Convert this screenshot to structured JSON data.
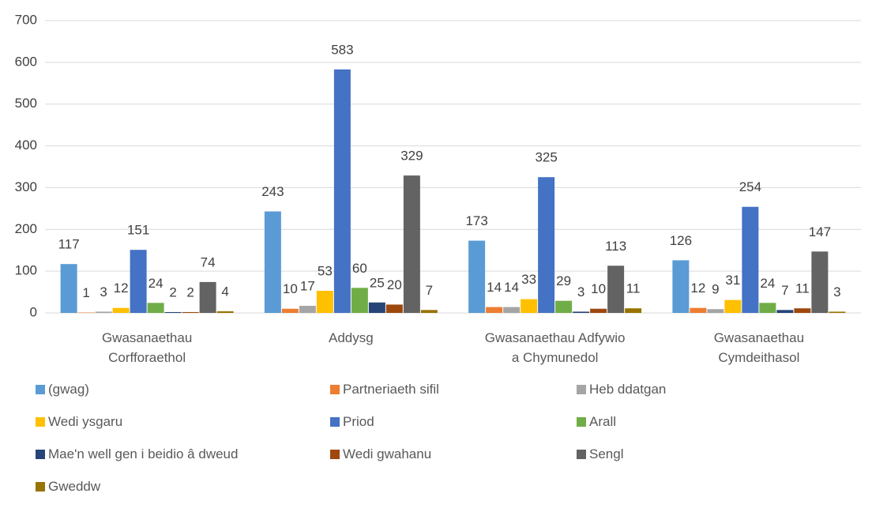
{
  "chart_data": {
    "type": "bar",
    "categories": [
      "Gwasanaethau Corfforaethol",
      "Addysg",
      "Gwasanaethau Adfywio a Chymunedol",
      "Gwasanaethau Cymdeithasol"
    ],
    "series": [
      {
        "name": "(gwag)",
        "color": "#5b9bd5",
        "values": [
          117,
          243,
          173,
          126
        ]
      },
      {
        "name": "Partneriaeth sifil",
        "color": "#ed7d31",
        "values": [
          1,
          10,
          14,
          12
        ]
      },
      {
        "name": "Heb ddatgan",
        "color": "#a5a5a5",
        "values": [
          3,
          17,
          14,
          9
        ]
      },
      {
        "name": "Wedi ysgaru",
        "color": "#ffc000",
        "values": [
          12,
          53,
          33,
          31
        ]
      },
      {
        "name": "Priod",
        "color": "#4472c4",
        "values": [
          151,
          583,
          325,
          254
        ]
      },
      {
        "name": "Arall",
        "color": "#70ad47",
        "values": [
          24,
          60,
          29,
          24
        ]
      },
      {
        "name": "Mae'n well gen i beidio â dweud",
        "color": "#264478",
        "values": [
          2,
          25,
          3,
          7
        ]
      },
      {
        "name": "Wedi gwahanu",
        "color": "#9e480e",
        "values": [
          2,
          20,
          10,
          11
        ]
      },
      {
        "name": "Sengl",
        "color": "#636363",
        "values": [
          74,
          329,
          113,
          147
        ]
      },
      {
        "name": "Gweddw",
        "color": "#997300",
        "values": [
          4,
          7,
          11,
          3
        ]
      }
    ],
    "ylim": [
      0,
      700
    ],
    "yticks": [
      0,
      100,
      200,
      300,
      400,
      500,
      600,
      700
    ],
    "grid": true,
    "legend": "bottom"
  }
}
